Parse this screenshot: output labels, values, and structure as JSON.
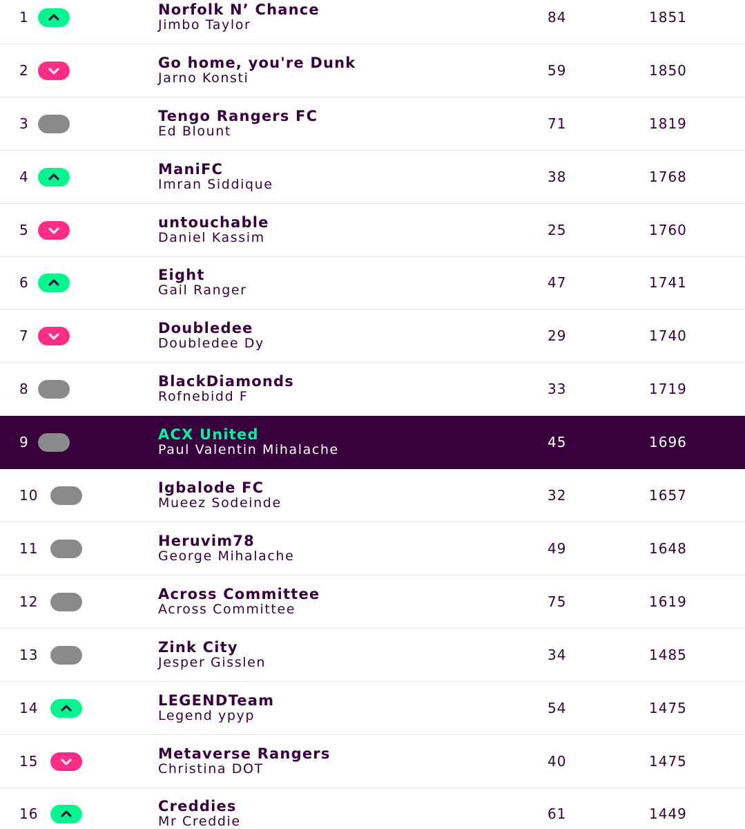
{
  "table": {
    "rows": [
      {
        "rank": 1,
        "team": "Norfolk N’ Chance",
        "manager": "Jimbo Taylor",
        "points": 84,
        "total": 1851
      },
      {
        "rank": 2,
        "team": "Go home, you're Dunk",
        "manager": "Jarno Konsti",
        "points": 59,
        "total": 1850
      },
      {
        "rank": 3,
        "team": "Tengo Rangers FC",
        "manager": "Ed Blount",
        "points": 71,
        "total": 1819
      },
      {
        "rank": 4,
        "team": "ManiFC",
        "manager": "Imran Siddique",
        "points": 38,
        "total": 1768
      },
      {
        "rank": 5,
        "team": "untouchable",
        "manager": "Daniel Kassim",
        "points": 25,
        "total": 1760
      },
      {
        "rank": 6,
        "team": "Eight",
        "manager": "Gail Ranger",
        "points": 47,
        "total": 1741
      },
      {
        "rank": 7,
        "team": "Doubledee",
        "manager": "Doubledee Dy",
        "points": 29,
        "total": 1740
      },
      {
        "rank": 8,
        "team": "BlackDiamonds",
        "manager": "Rofnebidd F",
        "points": 33,
        "total": 1719
      },
      {
        "rank": 9,
        "team": "ACX United",
        "manager": "Paul Valentin Mihalache",
        "points": 45,
        "total": 1696
      },
      {
        "rank": 10,
        "team": "Igbalode FC",
        "manager": "Mueez Sodeinde",
        "points": 32,
        "total": 1657
      },
      {
        "rank": 11,
        "team": "Heruvim78",
        "manager": "George Mihalache",
        "points": 49,
        "total": 1648
      },
      {
        "rank": 12,
        "team": "Across Committee",
        "manager": "Across Committee",
        "points": 75,
        "total": 1619
      },
      {
        "rank": 13,
        "team": "Zink City",
        "manager": "Jesper Gisslen",
        "points": 34,
        "total": 1485
      },
      {
        "rank": 14,
        "team": "LEGENDTeam",
        "manager": "Legend урур",
        "points": 54,
        "total": 1475
      },
      {
        "rank": 15,
        "team": "Metaverse Rangers",
        "manager": "Christina DOT",
        "points": 40,
        "total": 1475
      },
      {
        "rank": 16,
        "team": "Creddies",
        "manager": "Mr Creddie",
        "points": 61,
        "total": 1449
      }
    ]
  }
}
